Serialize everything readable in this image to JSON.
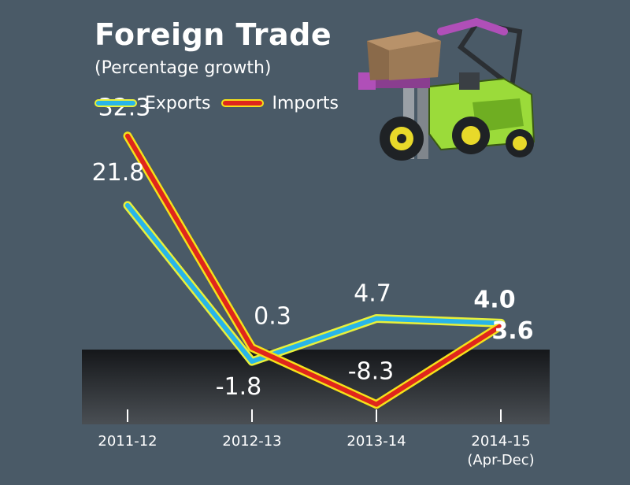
{
  "chart_data": {
    "type": "line",
    "title": "Foreign Trade",
    "subtitle": "(Percentage growth)",
    "categories": [
      "2011-12",
      "2012-13",
      "2013-14",
      "2014-15"
    ],
    "category_sublabels": [
      "",
      "",
      "",
      "(Apr-Dec)"
    ],
    "series": [
      {
        "name": "Exports",
        "values": [
          21.8,
          -1.8,
          4.7,
          4.0
        ],
        "color": "#29b5e8",
        "outline": "#e8f03a"
      },
      {
        "name": "Imports",
        "values": [
          32.3,
          0.3,
          -8.3,
          3.6
        ],
        "color": "#e0261c",
        "outline": "#f5e11a"
      }
    ],
    "data_labels": [
      {
        "series": "Exports",
        "index": 0,
        "text": "21.8"
      },
      {
        "series": "Exports",
        "index": 1,
        "text": "-1.8"
      },
      {
        "series": "Exports",
        "index": 2,
        "text": "4.7"
      },
      {
        "series": "Exports",
        "index": 3,
        "text": "4.0",
        "bold": true
      },
      {
        "series": "Imports",
        "index": 0,
        "text": "32.3"
      },
      {
        "series": "Imports",
        "index": 1,
        "text": "0.3"
      },
      {
        "series": "Imports",
        "index": 2,
        "text": "-8.3"
      },
      {
        "series": "Imports",
        "index": 3,
        "text": "3.6",
        "bold": true
      }
    ],
    "legend": "top-left",
    "grid": false,
    "colors": {
      "background": "#4a5a67",
      "negative_band": "#202326"
    }
  }
}
